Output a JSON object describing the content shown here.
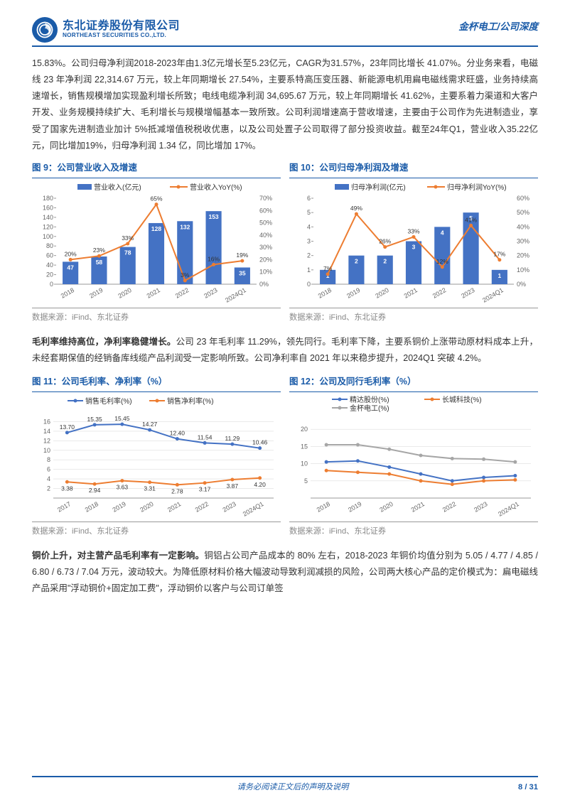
{
  "header": {
    "logo_zh": "东北证券股份有限公司",
    "logo_en": "NORTHEAST SECURITIES CO.,LTD.",
    "doc_title": "金杯电工/公司深度"
  },
  "para1": "15.83%。公司归母净利润2018-2023年由1.3亿元增长至5.23亿元，CAGR为31.57%，23年同比增长 41.07%。分业务来看，电磁线 23 年净利润 22,314.67 万元，较上年同期增长 27.54%，主要系特高压变压器、新能源电机用扁电磁线需求旺盛，业务持续高速增长，销售规模增加实现盈利增长所致；电线电缆净利润 34,695.67 万元，较上年同期增长 41.62%，主要系着力渠道和大客户开发、业务规模持续扩大、毛利增长与规模增幅基本一致所致。公司利润增速高于营收增速，主要由于公司作为先进制造业，享受了国家先进制造业加计 5%抵减增值税税收优惠，以及公司处置子公司取得了部分投资收益。截至24年Q1，营业收入35.22亿元，同比增加19%，归母净利润 1.34 亿，同比增加 17%。",
  "para2_lead": "毛利率维持高位，净利率稳健增长。",
  "para2_rest": "公司 23 年毛利率 11.29%，领先同行。毛利率下降，主要系铜价上涨带动原材料成本上升，未经套期保值的经销备库线缆产品利润受一定影响所致。公司净利率自 2021 年以来稳步提升，2024Q1 突破 4.2%。",
  "para3_lead": "铜价上升，对主营产品毛利率有一定影响。",
  "para3_rest": "铜铝占公司产品成本的 80% 左右，2018-2023 年铜价均值分别为 5.05 / 4.77 / 4.85 / 6.80 / 6.73 / 7.04 万元，波动较大。为降低原材料价格大幅波动导致利润减损的风险，公司两大核心产品的定价模式为：扁电磁线产品采用\"浮动铜价+固定加工费\"，浮动铜价以客户与公司订单签",
  "chart9": {
    "title": "图 9：公司营业收入及增速",
    "type": "bar-line",
    "legend_bar": "营业收入(亿元)",
    "legend_line": "营业收入YoY(%)",
    "categories": [
      "2018",
      "2019",
      "2020",
      "2021",
      "2022",
      "2023",
      "2024Q1"
    ],
    "bar_values": [
      47,
      58,
      78,
      128,
      132,
      153,
      35
    ],
    "line_values": [
      20,
      23,
      33,
      65,
      3,
      16,
      19
    ],
    "y1_max": 180,
    "y1_step": 20,
    "y2_max": 70,
    "y2_step": 10,
    "bar_color": "#4472c4",
    "line_color": "#ed7d31",
    "source": "数据来源：iFind、东北证券"
  },
  "chart10": {
    "title": "图 10：公司归母净利润及增速",
    "type": "bar-line",
    "legend_bar": "归母净利润(亿元)",
    "legend_line": "归母净利润YoY(%)",
    "categories": [
      "2018",
      "2019",
      "2020",
      "2021",
      "2022",
      "2023",
      "2024Q1"
    ],
    "bar_values": [
      1,
      2,
      2,
      3,
      4,
      5,
      1
    ],
    "line_values": [
      7,
      49,
      26,
      33,
      12,
      41,
      17
    ],
    "y1_max": 6,
    "y1_step": 1,
    "y2_max": 60,
    "y2_step": 10,
    "bar_color": "#4472c4",
    "line_color": "#ed7d31",
    "source": "数据来源：iFind、东北证券"
  },
  "chart11": {
    "title": "图 11：公司毛利率、净利率（%）",
    "type": "line",
    "legend1": "销售毛利率(%)",
    "legend2": "销售净利率(%)",
    "categories": [
      "2017",
      "2018",
      "2019",
      "2020",
      "2021",
      "2022",
      "2023",
      "2024Q1"
    ],
    "series1": [
      13.7,
      15.35,
      15.45,
      14.27,
      12.4,
      11.54,
      11.29,
      10.46
    ],
    "series2": [
      3.38,
      2.94,
      3.63,
      3.31,
      2.78,
      3.17,
      3.87,
      4.2
    ],
    "y_min": 0,
    "y_max": 18,
    "y_ticks": [
      2,
      4,
      6,
      8,
      10,
      12,
      14,
      16
    ],
    "color1": "#4472c4",
    "color2": "#ed7d31",
    "source": "数据来源：iFind、东北证券"
  },
  "chart12": {
    "title": "图 12：公司及同行毛利率（%）",
    "type": "line",
    "legend1": "精达股份(%)",
    "legend2": "长城科技(%)",
    "legend3": "金杯电工(%)",
    "categories": [
      "2018",
      "2019",
      "2020",
      "2021",
      "2022",
      "2023",
      "2024Q1"
    ],
    "series1": [
      10.5,
      10.8,
      9,
      7,
      5,
      6,
      6.5
    ],
    "series2": [
      8,
      7.5,
      7,
      5,
      4,
      5,
      5.3
    ],
    "series3": [
      15.5,
      15.5,
      14.2,
      12.4,
      11.5,
      11.3,
      10.5
    ],
    "y_min": 0,
    "y_max": 25,
    "y_ticks": [
      5,
      10,
      15,
      20
    ],
    "color1": "#4472c4",
    "color2": "#ed7d31",
    "color3": "#a6a6a6",
    "source": "数据来源：iFind、东北证券"
  },
  "footer": {
    "center": "请务必阅读正文后的声明及说明",
    "page": "8 / 31"
  }
}
